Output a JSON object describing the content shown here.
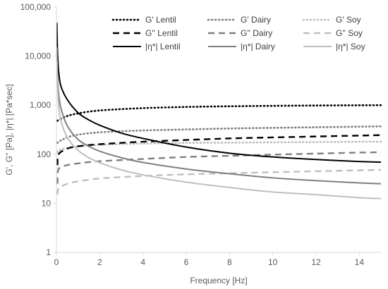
{
  "chart_data": {
    "type": "line",
    "xlabel": "Frequency [Hz]",
    "ylabel": "G', G'' [Pa], |η*| [Pa*sec]",
    "xlim": [
      0,
      15
    ],
    "ylim": [
      1,
      100000
    ],
    "yscale": "log",
    "xticks": [
      0,
      2,
      4,
      6,
      8,
      10,
      12,
      14
    ],
    "yticks": [
      1,
      10,
      100,
      1000,
      10000,
      100000
    ],
    "ytick_labels": [
      "1",
      "10",
      "100",
      "1,000",
      "10,000",
      "100,000"
    ],
    "grid": false,
    "legend_position": "top",
    "series": [
      {
        "name": "G' Lentil",
        "color": "#000000",
        "dash": "dotted",
        "x": [
          0.05,
          0.1,
          0.5,
          1,
          2,
          4,
          6,
          8,
          10,
          12,
          14,
          15
        ],
        "y": [
          480,
          500,
          600,
          680,
          780,
          870,
          920,
          950,
          970,
          985,
          995,
          1000
        ]
      },
      {
        "name": "G' Dairy",
        "color": "#7f7f7f",
        "dash": "dotted",
        "x": [
          0.05,
          0.1,
          0.5,
          1,
          2,
          4,
          6,
          8,
          10,
          12,
          14,
          15
        ],
        "y": [
          170,
          180,
          220,
          250,
          280,
          305,
          320,
          335,
          345,
          355,
          365,
          370
        ]
      },
      {
        "name": "G' Soy",
        "color": "#bfbfbf",
        "dash": "dotted",
        "x": [
          0.05,
          0.1,
          0.5,
          1,
          2,
          4,
          6,
          8,
          10,
          12,
          14,
          15
        ],
        "y": [
          110,
          120,
          135,
          145,
          155,
          165,
          170,
          172,
          175,
          177,
          180,
          180
        ]
      },
      {
        "name": "G'' Lentil",
        "color": "#000000",
        "dash": "dashed",
        "x": [
          0.05,
          0.1,
          0.5,
          1,
          2,
          4,
          6,
          8,
          10,
          12,
          14,
          15
        ],
        "y": [
          60,
          100,
          130,
          145,
          160,
          180,
          195,
          210,
          220,
          230,
          240,
          245
        ]
      },
      {
        "name": "G'' Dairy",
        "color": "#7f7f7f",
        "dash": "dashed",
        "x": [
          0.05,
          0.1,
          0.5,
          1,
          2,
          4,
          6,
          8,
          10,
          12,
          14,
          15
        ],
        "y": [
          25,
          50,
          60,
          65,
          72,
          80,
          88,
          93,
          98,
          103,
          108,
          110
        ]
      },
      {
        "name": "G'' Soy",
        "color": "#bfbfbf",
        "dash": "dashed",
        "x": [
          0.05,
          0.1,
          0.5,
          1,
          2,
          4,
          6,
          8,
          10,
          12,
          14,
          15
        ],
        "y": [
          15,
          20,
          25,
          28,
          32,
          36,
          39,
          41,
          43,
          45,
          47,
          48
        ]
      },
      {
        "name": "|η*| Lentil",
        "color": "#000000",
        "dash": "solid",
        "x": [
          0.02,
          0.05,
          0.1,
          0.2,
          0.5,
          1,
          1.5,
          2,
          3,
          4,
          6,
          8,
          10,
          12,
          14,
          15
        ],
        "y": [
          48000,
          12000,
          5000,
          2500,
          1300,
          700,
          500,
          390,
          270,
          210,
          140,
          105,
          88,
          78,
          71,
          69
        ]
      },
      {
        "name": "|η*| Dairy",
        "color": "#7f7f7f",
        "dash": "solid",
        "x": [
          0.02,
          0.05,
          0.1,
          0.2,
          0.5,
          1,
          1.5,
          2,
          3,
          4,
          6,
          8,
          10,
          12,
          14,
          15
        ],
        "y": [
          15000,
          4000,
          1800,
          900,
          380,
          200,
          145,
          115,
          85,
          68,
          50,
          40,
          33,
          29,
          26,
          25
        ]
      },
      {
        "name": "|η*| Soy",
        "color": "#bfbfbf",
        "dash": "solid",
        "x": [
          0.02,
          0.05,
          0.1,
          0.2,
          0.5,
          1,
          1.5,
          2,
          3,
          4,
          6,
          8,
          10,
          12,
          14,
          15
        ],
        "y": [
          8000,
          2500,
          1000,
          500,
          220,
          120,
          85,
          67,
          48,
          38,
          27,
          21,
          17,
          15,
          13,
          12.5
        ]
      }
    ]
  }
}
